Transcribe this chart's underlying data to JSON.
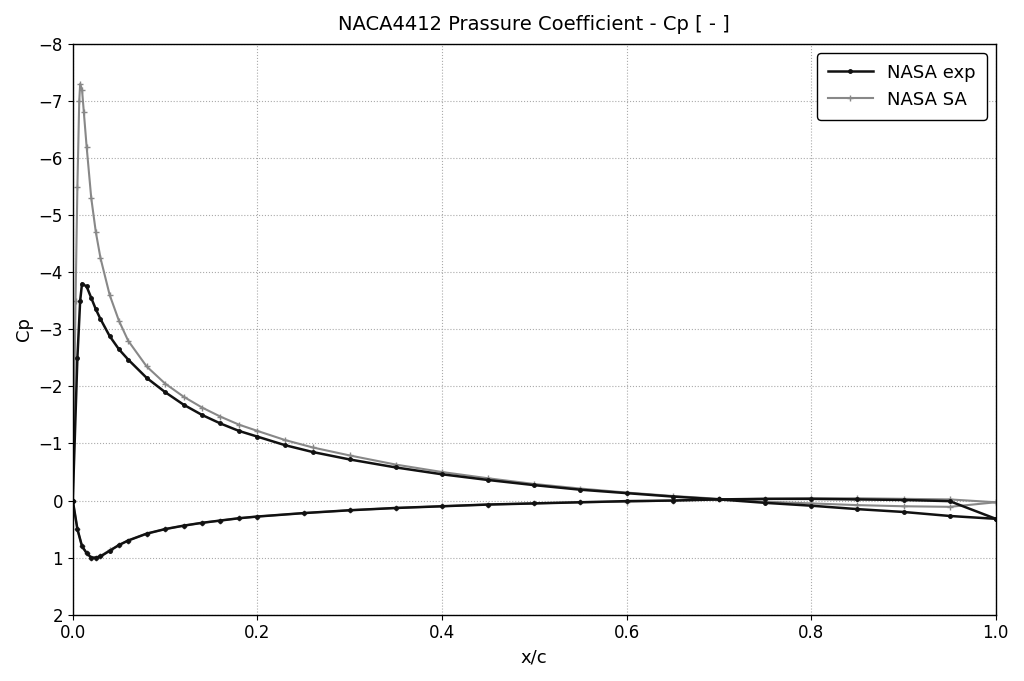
{
  "title": "NACA4412 Prassure Coefficient - Cp [ - ]",
  "xlabel": "x/c",
  "ylabel": "Cp",
  "xlim": [
    0,
    1
  ],
  "ylim": [
    2,
    -8
  ],
  "yticks": [
    -8,
    -7,
    -6,
    -5,
    -4,
    -3,
    -2,
    -1,
    0,
    1,
    2
  ],
  "xticks": [
    0,
    0.2,
    0.4,
    0.6,
    0.8,
    1.0
  ],
  "background_color": "#ffffff",
  "grid_color": "#aaaaaa",
  "nasa_exp_color": "#111111",
  "nasa_sa_color": "#888888",
  "nasa_exp_upper_x": [
    0.0,
    0.005,
    0.008,
    0.01,
    0.015,
    0.02,
    0.025,
    0.03,
    0.04,
    0.05,
    0.06,
    0.08,
    0.1,
    0.12,
    0.14,
    0.16,
    0.18,
    0.2,
    0.23,
    0.26,
    0.3,
    0.35,
    0.4,
    0.45,
    0.5,
    0.55,
    0.6,
    0.65,
    0.7,
    0.75,
    0.8,
    0.85,
    0.9,
    0.95,
    1.0
  ],
  "nasa_exp_upper_y": [
    0.0,
    -2.5,
    -3.5,
    -3.8,
    -3.75,
    -3.55,
    -3.35,
    -3.18,
    -2.88,
    -2.65,
    -2.47,
    -2.15,
    -1.9,
    -1.68,
    -1.5,
    -1.35,
    -1.22,
    -1.12,
    -0.97,
    -0.85,
    -0.72,
    -0.58,
    -0.46,
    -0.36,
    -0.27,
    -0.19,
    -0.13,
    -0.07,
    -0.02,
    0.04,
    0.09,
    0.15,
    0.2,
    0.27,
    0.32
  ],
  "nasa_exp_lower_x": [
    0.0,
    0.005,
    0.01,
    0.015,
    0.02,
    0.025,
    0.03,
    0.04,
    0.05,
    0.06,
    0.08,
    0.1,
    0.12,
    0.14,
    0.16,
    0.18,
    0.2,
    0.25,
    0.3,
    0.35,
    0.4,
    0.45,
    0.5,
    0.55,
    0.6,
    0.65,
    0.7,
    0.75,
    0.8,
    0.85,
    0.9,
    0.95,
    1.0
  ],
  "nasa_exp_lower_y": [
    0.0,
    0.5,
    0.8,
    0.92,
    1.0,
    1.0,
    0.98,
    0.88,
    0.78,
    0.7,
    0.58,
    0.5,
    0.44,
    0.39,
    0.35,
    0.31,
    0.28,
    0.22,
    0.17,
    0.13,
    0.1,
    0.07,
    0.05,
    0.03,
    0.01,
    0.0,
    -0.02,
    -0.03,
    -0.03,
    -0.02,
    -0.01,
    0.01,
    0.32
  ],
  "nasa_sa_upper_x": [
    0.0,
    0.003,
    0.005,
    0.007,
    0.008,
    0.01,
    0.012,
    0.015,
    0.02,
    0.025,
    0.03,
    0.04,
    0.05,
    0.06,
    0.08,
    0.1,
    0.12,
    0.14,
    0.16,
    0.18,
    0.2,
    0.23,
    0.26,
    0.3,
    0.35,
    0.4,
    0.45,
    0.5,
    0.55,
    0.6,
    0.65,
    0.7,
    0.75,
    0.8,
    0.85,
    0.9,
    0.95,
    1.0
  ],
  "nasa_sa_upper_y": [
    0.0,
    -3.5,
    -5.5,
    -7.0,
    -7.3,
    -7.2,
    -6.8,
    -6.2,
    -5.3,
    -4.7,
    -4.25,
    -3.6,
    -3.15,
    -2.8,
    -2.35,
    -2.05,
    -1.82,
    -1.63,
    -1.47,
    -1.33,
    -1.22,
    -1.06,
    -0.93,
    -0.79,
    -0.63,
    -0.5,
    -0.39,
    -0.29,
    -0.21,
    -0.14,
    -0.08,
    -0.03,
    0.02,
    0.05,
    0.08,
    0.1,
    0.11,
    0.03
  ],
  "nasa_sa_lower_x": [
    0.0,
    0.005,
    0.01,
    0.015,
    0.02,
    0.025,
    0.03,
    0.04,
    0.05,
    0.06,
    0.08,
    0.1,
    0.12,
    0.14,
    0.16,
    0.18,
    0.2,
    0.25,
    0.3,
    0.35,
    0.4,
    0.45,
    0.5,
    0.55,
    0.6,
    0.65,
    0.7,
    0.75,
    0.8,
    0.85,
    0.9,
    0.95,
    1.0
  ],
  "nasa_sa_lower_y": [
    0.0,
    0.5,
    0.8,
    0.92,
    1.0,
    1.0,
    0.97,
    0.87,
    0.78,
    0.7,
    0.58,
    0.5,
    0.44,
    0.39,
    0.35,
    0.31,
    0.28,
    0.22,
    0.17,
    0.13,
    0.1,
    0.07,
    0.05,
    0.03,
    0.02,
    0.0,
    -0.02,
    -0.03,
    -0.04,
    -0.04,
    -0.03,
    -0.02,
    0.03
  ],
  "legend_labels": [
    "NASA exp",
    "NASA SA"
  ],
  "title_fontsize": 14,
  "label_fontsize": 13,
  "tick_fontsize": 12,
  "legend_fontsize": 13
}
